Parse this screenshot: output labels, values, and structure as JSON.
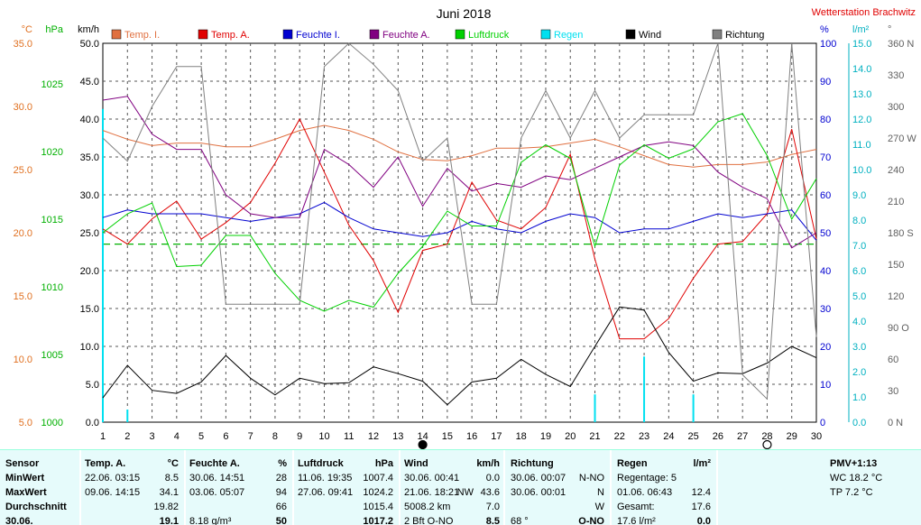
{
  "title": "Juni 2018",
  "station": "Wetterstation Brachwitz",
  "chart_data": {
    "type": "line",
    "title": "Juni 2018",
    "x": [
      1,
      2,
      3,
      4,
      5,
      6,
      7,
      8,
      9,
      10,
      11,
      12,
      13,
      14,
      15,
      16,
      17,
      18,
      19,
      20,
      21,
      22,
      23,
      24,
      25,
      26,
      27,
      28,
      29,
      30
    ],
    "xlim": [
      1,
      30
    ],
    "axes": {
      "temp": {
        "label": "°C",
        "ylim": [
          5,
          35
        ],
        "ticks": [
          5.0,
          10.0,
          15.0,
          20.0,
          25.0,
          30.0,
          35.0
        ],
        "color": "#e07020"
      },
      "pressure": {
        "label": "hPa",
        "ylim": [
          1000,
          1028
        ],
        "ticks": [
          1000,
          1005,
          1010,
          1015,
          1020,
          1025
        ],
        "color": "#00b000"
      },
      "wind": {
        "label": "km/h",
        "ylim": [
          0,
          50
        ],
        "ticks": [
          0.0,
          5.0,
          10.0,
          15.0,
          20.0,
          25.0,
          30.0,
          35.0,
          40.0,
          45.0,
          50.0
        ],
        "color": "#000000"
      },
      "humidity": {
        "label": "%",
        "ylim": [
          0,
          100
        ],
        "ticks": [
          0,
          10,
          20,
          30,
          40,
          50,
          60,
          70,
          80,
          90,
          100
        ],
        "color": "#0000d0"
      },
      "rain": {
        "label": "l/m²",
        "ylim": [
          0,
          15
        ],
        "ticks": [
          0.0,
          1.0,
          2.0,
          3.0,
          4.0,
          5.0,
          6.0,
          7.0,
          8.0,
          9.0,
          10.0,
          11.0,
          12.0,
          13.0,
          14.0,
          15.0
        ],
        "color": "#00b0c0"
      },
      "direction": {
        "label": "°",
        "ylim": [
          0,
          360
        ],
        "ticks": [
          0,
          30,
          60,
          90,
          120,
          150,
          180,
          210,
          240,
          270,
          300,
          330,
          360
        ],
        "ticklabels": [
          "0 N",
          "30",
          "60",
          "90 O",
          "120",
          "150",
          "180 S",
          "210",
          "240",
          "270 W",
          "300",
          "330",
          "360 N"
        ],
        "color": "#606060"
      }
    },
    "series": [
      {
        "name": "Temp. I.",
        "axis": "temp",
        "color": "#e07040",
        "values": [
          28.1,
          27.4,
          26.9,
          27.1,
          27.1,
          26.8,
          26.8,
          27.4,
          28.1,
          28.5,
          28.1,
          27.4,
          26.4,
          25.8,
          25.7,
          26.1,
          26.7,
          26.7,
          26.8,
          27.1,
          27.4,
          26.8,
          26.1,
          25.4,
          25.2,
          25.4,
          25.4,
          25.6,
          26.2,
          26.6
        ]
      },
      {
        "name": "Temp. A.",
        "axis": "temp",
        "color": "#e00000",
        "values": [
          20.3,
          19.1,
          21.1,
          22.5,
          19.5,
          20.8,
          22.4,
          25.5,
          29.0,
          24.8,
          20.6,
          17.8,
          13.7,
          18.6,
          19.1,
          24.0,
          21.0,
          20.3,
          22.0,
          26.2,
          17.9,
          11.6,
          11.6,
          13.2,
          16.4,
          19.1,
          19.3,
          21.5,
          28.2,
          19.5
        ]
      },
      {
        "name": "Feuchte I.",
        "axis": "humidity",
        "color": "#0000d0",
        "values": [
          54,
          56,
          55,
          55,
          55,
          54,
          53,
          54,
          55,
          58,
          54,
          51,
          50,
          49,
          50,
          53,
          51,
          50,
          53,
          55,
          54,
          50,
          51,
          51,
          53,
          55,
          54,
          55,
          56,
          48
        ]
      },
      {
        "name": "Feuchte A.",
        "axis": "humidity",
        "color": "#800080",
        "values": [
          85,
          86,
          76,
          72,
          72,
          60,
          55,
          54,
          54,
          72,
          68,
          62,
          70,
          57,
          67,
          61,
          63,
          62,
          65,
          64,
          67,
          70,
          73,
          74,
          73,
          66,
          62,
          59,
          46,
          50
        ]
      },
      {
        "name": "Luftdruck",
        "axis": "pressure",
        "color": "#00d000",
        "values": [
          1014.0,
          1015.4,
          1016.2,
          1011.5,
          1011.6,
          1013.8,
          1013.8,
          1011.0,
          1009.0,
          1008.2,
          1009.0,
          1008.5,
          1011.0,
          1013.0,
          1015.6,
          1014.5,
          1014.5,
          1019.2,
          1020.5,
          1019.5,
          1013.0,
          1019.0,
          1020.5,
          1019.5,
          1020.2,
          1022.2,
          1022.8,
          1019.7,
          1015.0,
          1018.0
        ]
      },
      {
        "name": "Regen",
        "axis": "rain",
        "color": "#00e0f0",
        "type": "bar",
        "values": [
          12.4,
          0.5,
          0,
          0,
          0,
          0,
          0,
          0,
          0,
          0,
          0,
          0,
          0,
          0,
          0,
          0,
          0,
          0,
          0,
          0,
          1.1,
          0,
          2.6,
          0,
          1.1,
          0,
          0,
          0,
          0,
          0
        ]
      },
      {
        "name": "Wind",
        "axis": "wind",
        "color": "#000000",
        "values": [
          3.2,
          7.5,
          4.2,
          3.8,
          5.3,
          8.8,
          5.8,
          3.6,
          5.8,
          5.1,
          5.2,
          7.3,
          6.4,
          5.4,
          2.3,
          5.3,
          5.8,
          8.3,
          6.3,
          4.7,
          10.0,
          15.2,
          14.8,
          9.2,
          5.4,
          6.5,
          6.4,
          7.8,
          10.0,
          8.5
        ]
      },
      {
        "name": "Richtung",
        "axis": "direction",
        "color": "#808080",
        "values": [
          270,
          248,
          300,
          338,
          338,
          112,
          112,
          112,
          112,
          338,
          360,
          340,
          315,
          248,
          270,
          112,
          112,
          270,
          315,
          270,
          315,
          270,
          292,
          292,
          292,
          360,
          45,
          22,
          360,
          81
        ]
      }
    ],
    "reference_lines": [
      {
        "axis": "humidity",
        "value": 47,
        "color": "#00b000",
        "style": "dashed"
      }
    ],
    "markers": [
      {
        "x": 14,
        "type": "new-moon"
      },
      {
        "x": 28,
        "type": "full-moon"
      }
    ],
    "grid": true,
    "legend_position": "top"
  },
  "stats": {
    "sensor": {
      "header": "Sensor",
      "min": "MinWert",
      "max": "MaxWert",
      "avg": "Durchschnitt",
      "last": "30.06."
    },
    "temp": {
      "header": "Temp. A.",
      "unit": "°C",
      "min_date": "22.06.  03:15",
      "min_val": "8.5",
      "max_date": "09.06.  14:15",
      "max_val": "34.1",
      "avg_val": "19.82",
      "last_val": "19.1"
    },
    "humidity": {
      "header": "Feuchte A.",
      "unit": "%",
      "min_date": "30.06.  14:51",
      "min_val": "28",
      "max_date": "03.06.  05:07",
      "max_val": "94",
      "avg_val": "66",
      "last_extra": "8.18 g/m³",
      "last_val": "50"
    },
    "pressure": {
      "header": "Luftdruck",
      "unit": "hPa",
      "min_date": "11.06.  19:35",
      "min_val": "1007.4",
      "max_date": "27.06.  09:41",
      "max_val": "1024.2",
      "avg_val": "1015.4",
      "last_val": "1017.2"
    },
    "wind": {
      "header": "Wind",
      "unit": "km/h",
      "min_date": "30.06.  00:41",
      "min_val": "0.0",
      "max_date": "21.06.  18:21",
      "max_dir": "NW",
      "max_val": "43.6",
      "avg_extra": "5008.2 km",
      "avg_val": "7.0",
      "last_extra": "2 Bft O-NO",
      "last_val": "8.5"
    },
    "direction": {
      "header": "Richtung",
      "min_date": "30.06.  00:07",
      "min_val": "N-NO",
      "max_date": "30.06.  00:01",
      "max_val": "N",
      "avg_val": "W",
      "last_extra": "68 °",
      "last_val": "O-NO"
    },
    "rain": {
      "header": "Regen",
      "unit": "l/m²",
      "days_label": "Regentage: 5",
      "max_date": "01.06.  06:43",
      "max_val": "12.4",
      "total_label": "Gesamt:",
      "total_val": "17.6",
      "last_extra": "17.6 l/m²",
      "last_val": "0.0"
    },
    "pmv": {
      "title": "PMV+1:13",
      "wc": "WC 18.2 °C",
      "tp": "TP 7.2 °C"
    }
  }
}
